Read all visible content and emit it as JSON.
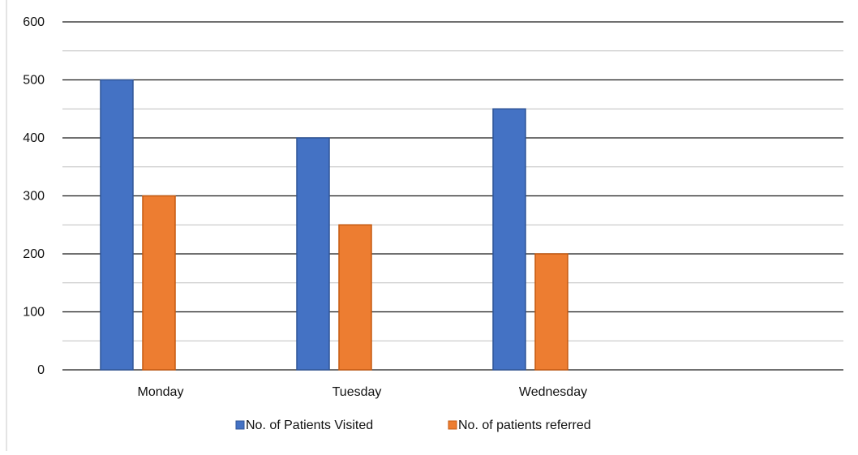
{
  "chart_data": {
    "type": "bar",
    "title": "",
    "xlabel": "",
    "ylabel": "",
    "categories": [
      "Monday",
      "Tuesday",
      "Wednesday"
    ],
    "ylim": [
      0,
      600
    ],
    "yticks": [
      0,
      100,
      200,
      300,
      400,
      500,
      600
    ],
    "grid": true,
    "legend_position": "bottom",
    "series": [
      {
        "name": "No. of Patients Visited",
        "values": [
          500,
          400,
          450
        ],
        "color": "#4472C4",
        "edge": "#2F5597"
      },
      {
        "name": "No. of patients referred",
        "values": [
          300,
          250,
          200
        ],
        "color": "#ED7D31",
        "edge": "#C55A11"
      }
    ]
  }
}
